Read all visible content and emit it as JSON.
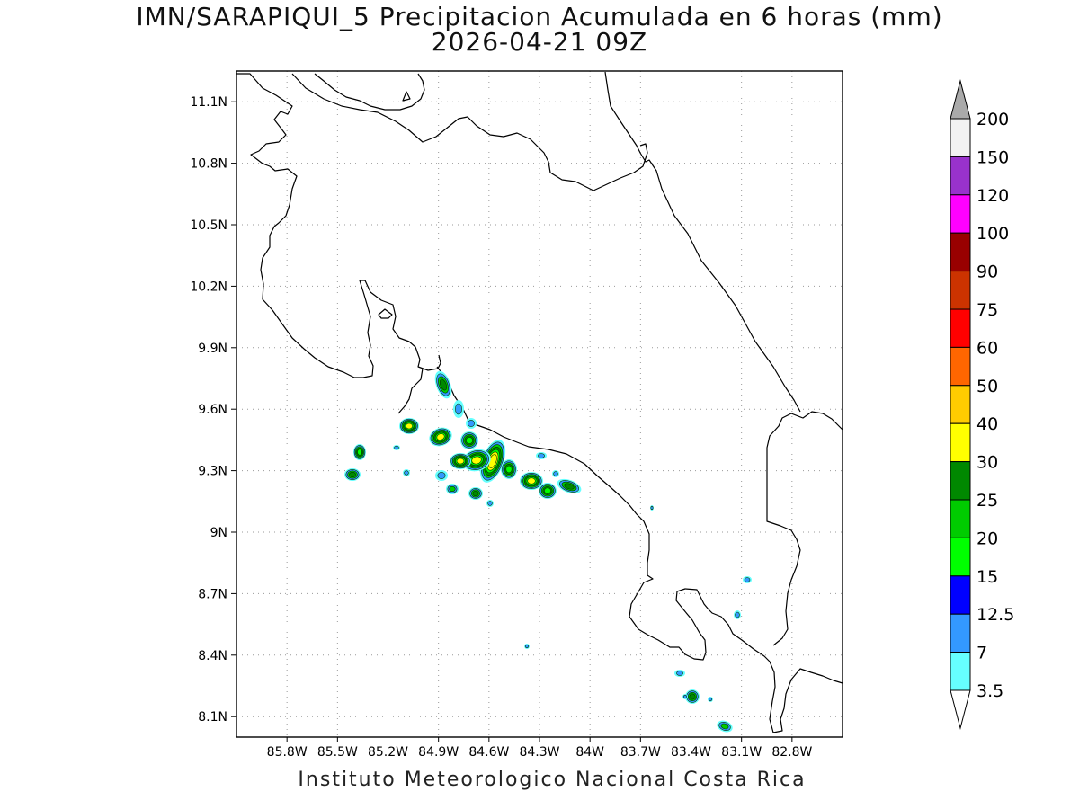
{
  "title": {
    "line1": "IMN/SARAPIQUI_5 Precipitacion Acumulada en 6 horas (mm)",
    "line2": "2026-04-21 09Z"
  },
  "footer": "Instituto Meteorologico Nacional Costa Rica",
  "map": {
    "lon_range": [
      -86.1,
      -82.5
    ],
    "lat_range": [
      8.0,
      11.25
    ],
    "lat_ticks": [
      "11.1N",
      "10.8N",
      "10.5N",
      "10.2N",
      "9.9N",
      "9.6N",
      "9.3N",
      "9N",
      "8.7N",
      "8.4N",
      "8.1N"
    ],
    "lon_ticks": [
      "85.8W",
      "85.5W",
      "85.2W",
      "84.9W",
      "84.6W",
      "84.3W",
      "84W",
      "83.7W",
      "83.4W",
      "83.1W",
      "82.8W"
    ],
    "grid": "dotted"
  },
  "colorbar": {
    "levels": [
      "200",
      "150",
      "120",
      "100",
      "90",
      "75",
      "60",
      "50",
      "40",
      "30",
      "25",
      "20",
      "15",
      "12.5",
      "7",
      "3.5"
    ],
    "colors": [
      "#f2f2f2",
      "#9932cc",
      "#ff00ff",
      "#990000",
      "#cc3300",
      "#ff0000",
      "#ff6600",
      "#ffcc00",
      "#ffff00",
      "#008800",
      "#00cc00",
      "#00ff00",
      "#0000ff",
      "#3399ff",
      "#66ffff"
    ],
    "over_color": "#aaaaaa",
    "under_color": "#ffffff"
  },
  "palette": {
    "light_cyan": "#66ffff",
    "sky_blue": "#3399ff",
    "blue": "#0000ff",
    "green": "#00ff00",
    "mid_green": "#00cc00",
    "dark_green": "#008800",
    "yellow": "#ffff00"
  }
}
